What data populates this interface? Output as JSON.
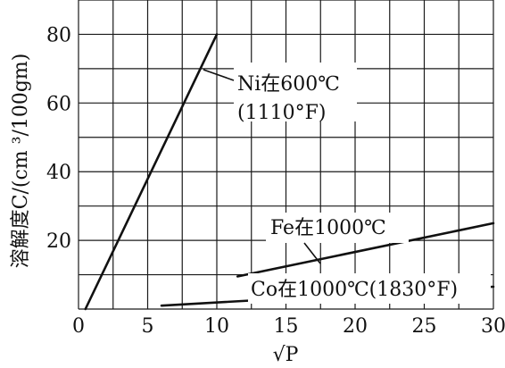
{
  "chart_data": {
    "type": "line",
    "title": "",
    "xlabel": "√P",
    "ylabel": "溶解度C/(cm ³/100gm)",
    "xlim": [
      0,
      30
    ],
    "ylim": [
      0,
      90
    ],
    "xticks": [
      0,
      5,
      10,
      15,
      20,
      25,
      30
    ],
    "yticks": [
      20,
      40,
      60,
      80
    ],
    "grid": true,
    "series": [
      {
        "name": "Ni在600℃ (1110°F)",
        "x": [
          0.5,
          10
        ],
        "y": [
          0,
          80
        ]
      },
      {
        "name": "Fe在1000℃",
        "x": [
          11.5,
          30
        ],
        "y": [
          9.5,
          25
        ]
      },
      {
        "name": "Co在1000℃(1830°F)",
        "x": [
          6,
          30
        ],
        "y": [
          1,
          6.5
        ]
      }
    ],
    "annotations": [
      {
        "lines": [
          "Ni在600℃",
          "(1110°F)"
        ]
      },
      {
        "lines": [
          "Fe在1000℃"
        ]
      },
      {
        "lines": [
          "Co在1000℃(1830°F)"
        ]
      }
    ]
  }
}
